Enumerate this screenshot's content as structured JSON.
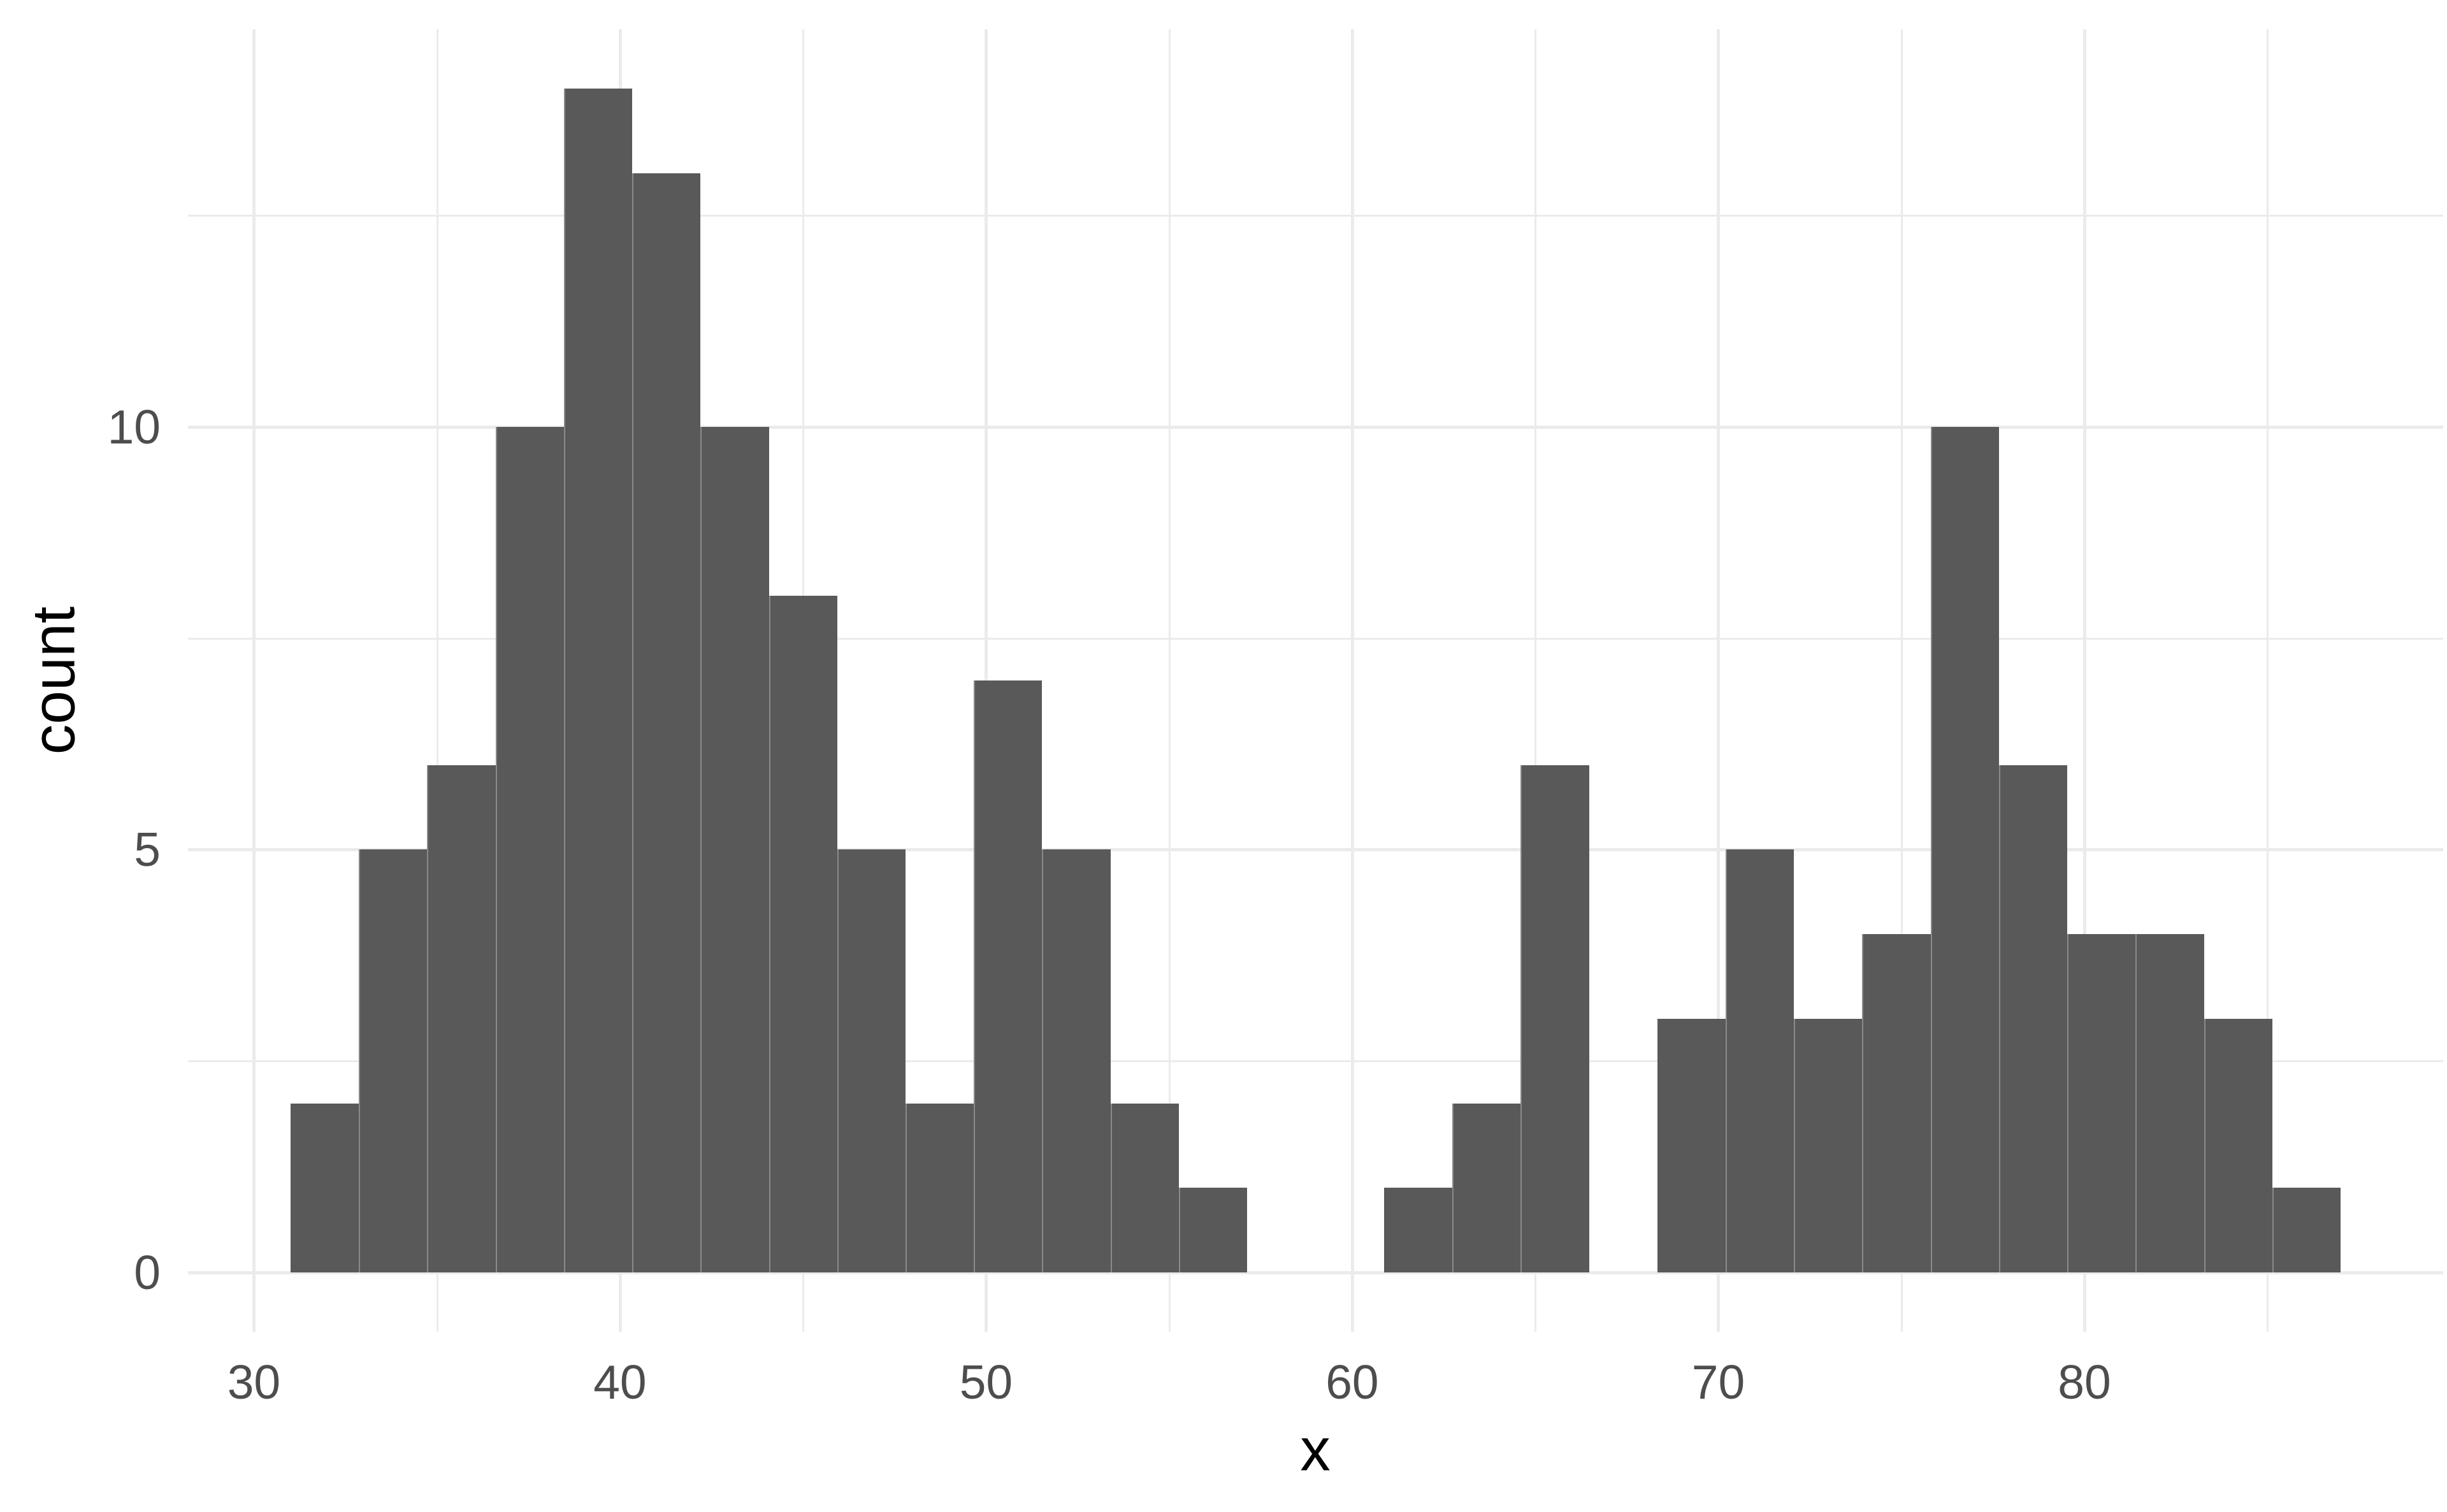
{
  "figure": {
    "background": "#ffffff"
  },
  "colors": {
    "bar_fill": "#595959",
    "bar_seam": "#8a8a8a",
    "gridline": "#ebebeb",
    "tick_text": "#4d4d4d",
    "title_text": "#000000"
  },
  "chart_data": {
    "type": "bar",
    "subtype": "histogram",
    "title": "",
    "xlabel": "x",
    "ylabel": "count",
    "grid": "on",
    "legend": "none",
    "xlim": [
      28.2,
      89.8
    ],
    "ylim": [
      -0.7,
      14.7
    ],
    "bin_start": 31.0,
    "bin_end": 87.0,
    "n_bins": 30,
    "bin_width": 1.8667,
    "bins": [
      {
        "x0": 31.0,
        "x1": 32.87,
        "count": 2
      },
      {
        "x0": 32.87,
        "x1": 34.73,
        "count": 5
      },
      {
        "x0": 34.73,
        "x1": 36.6,
        "count": 6
      },
      {
        "x0": 36.6,
        "x1": 38.47,
        "count": 10
      },
      {
        "x0": 38.47,
        "x1": 40.33,
        "count": 14
      },
      {
        "x0": 40.33,
        "x1": 42.2,
        "count": 13
      },
      {
        "x0": 42.2,
        "x1": 44.07,
        "count": 10
      },
      {
        "x0": 44.07,
        "x1": 45.93,
        "count": 8
      },
      {
        "x0": 45.93,
        "x1": 47.8,
        "count": 5
      },
      {
        "x0": 47.8,
        "x1": 49.67,
        "count": 2
      },
      {
        "x0": 49.67,
        "x1": 51.53,
        "count": 7
      },
      {
        "x0": 51.53,
        "x1": 53.4,
        "count": 5
      },
      {
        "x0": 53.4,
        "x1": 55.27,
        "count": 2
      },
      {
        "x0": 55.27,
        "x1": 57.13,
        "count": 1
      },
      {
        "x0": 57.13,
        "x1": 59.0,
        "count": 0
      },
      {
        "x0": 59.0,
        "x1": 60.87,
        "count": 0
      },
      {
        "x0": 60.87,
        "x1": 62.73,
        "count": 1
      },
      {
        "x0": 62.73,
        "x1": 64.6,
        "count": 2
      },
      {
        "x0": 64.6,
        "x1": 66.47,
        "count": 6
      },
      {
        "x0": 66.47,
        "x1": 68.33,
        "count": 0
      },
      {
        "x0": 68.33,
        "x1": 70.2,
        "count": 3
      },
      {
        "x0": 70.2,
        "x1": 72.07,
        "count": 5
      },
      {
        "x0": 72.07,
        "x1": 73.93,
        "count": 3
      },
      {
        "x0": 73.93,
        "x1": 75.8,
        "count": 4
      },
      {
        "x0": 75.8,
        "x1": 77.67,
        "count": 10
      },
      {
        "x0": 77.67,
        "x1": 79.53,
        "count": 6
      },
      {
        "x0": 79.53,
        "x1": 81.4,
        "count": 4
      },
      {
        "x0": 81.4,
        "x1": 83.27,
        "count": 4
      },
      {
        "x0": 83.27,
        "x1": 85.13,
        "count": 3
      },
      {
        "x0": 85.13,
        "x1": 87.0,
        "count": 1
      }
    ],
    "x_axis": {
      "major_ticks": [
        {
          "label": "30",
          "value": 30
        },
        {
          "label": "40",
          "value": 40
        },
        {
          "label": "50",
          "value": 50
        },
        {
          "label": "60",
          "value": 60
        },
        {
          "label": "70",
          "value": 70
        },
        {
          "label": "80",
          "value": 80
        }
      ],
      "minor_ticks": [
        35,
        45,
        55,
        65,
        75,
        85
      ]
    },
    "y_axis": {
      "major_ticks": [
        {
          "label": "0",
          "value": 0
        },
        {
          "label": "5",
          "value": 5
        },
        {
          "label": "10",
          "value": 10
        }
      ],
      "minor_ticks": [
        2.5,
        7.5,
        12.5
      ]
    }
  }
}
